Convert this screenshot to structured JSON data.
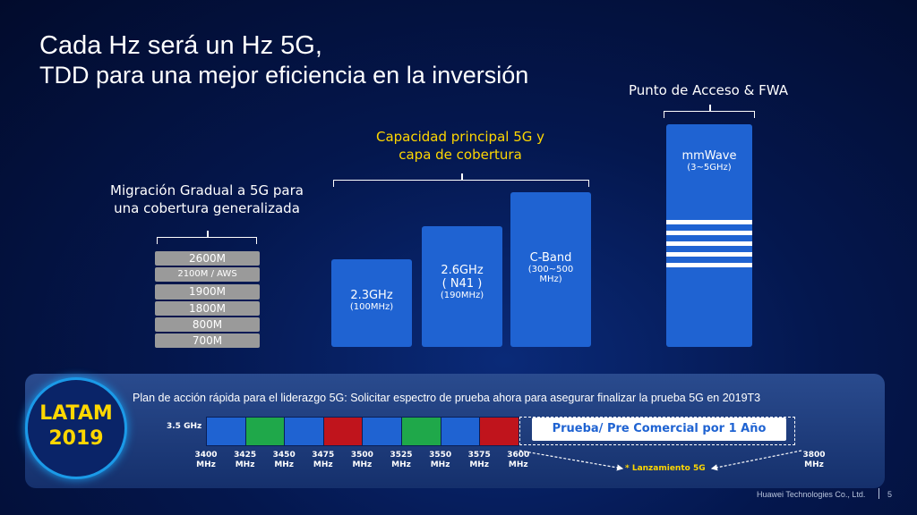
{
  "title": {
    "line1": "Cada Hz será un Hz 5G,",
    "line2": "TDD para una mejor eficiencia en la inversión"
  },
  "section_access": {
    "label": "Punto de Acceso & FWA",
    "block_main": "mmWave",
    "block_sub": "(3~5GHz)"
  },
  "section_capacity": {
    "label_line1": "Capacidad principal 5G y",
    "label_line2": "capa de cobertura",
    "blocks": [
      {
        "main": "2.3GHz",
        "sub": "(100MHz)"
      },
      {
        "main1": "2.6GHz",
        "main2": "( N41 )",
        "sub": "(190MHz)"
      },
      {
        "main": "C-Band",
        "sub1": "(300~500",
        "sub2": "MHz)"
      }
    ]
  },
  "section_migration": {
    "label_line1": "Migración Gradual a 5G para",
    "label_line2": "una cobertura generalizada",
    "bands": [
      "2600M",
      "2100M / AWS",
      "1900M",
      "1800M",
      "800M",
      "700M"
    ]
  },
  "bottom": {
    "badge_line1": "LATAM",
    "badge_line2": "2019",
    "plan_text": "Plan de acción rápida para el liderazgo 5G: Solicitar espectro de prueba ahora para asegurar finalizar la prueba 5G en 2019T3",
    "band_label": "3.5 GHz",
    "trial_label": "Prueba/ Pre Comercial por 1 Año",
    "launch_label": "* Lanzamiento 5G",
    "freq_ticks": [
      "3400",
      "3425",
      "3450",
      "3475",
      "3500",
      "3525",
      "3550",
      "3575",
      "3600"
    ],
    "freq_unit": "MHz",
    "end_tick": "3800",
    "cell_colors": [
      "#1f63d2",
      "#1fa84a",
      "#1f63d2",
      "#c0141c",
      "#1f63d2",
      "#1fa84a",
      "#1f63d2",
      "#c0141c"
    ]
  },
  "footer": {
    "company": "Huawei Technologies Co., Ltd.",
    "page": "5"
  },
  "colors": {
    "accent_yellow": "#ffd700",
    "block_blue": "#1f63d2",
    "band_gray": "#9a9a9a"
  }
}
